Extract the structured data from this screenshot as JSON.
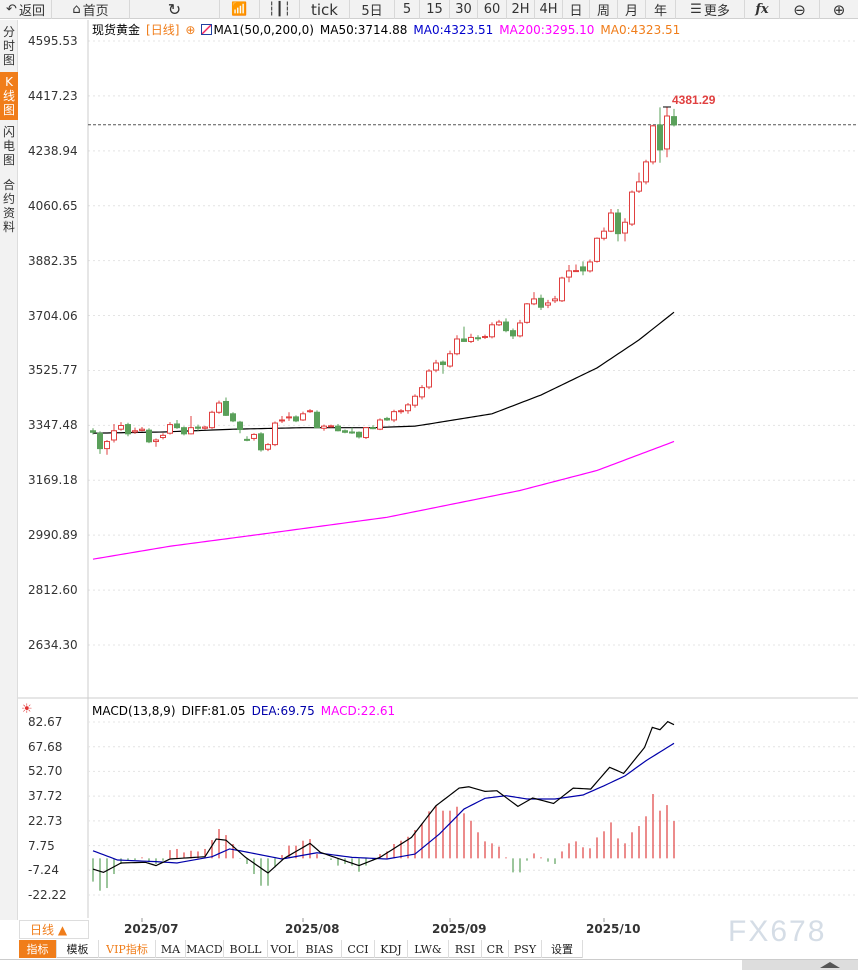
{
  "toolbar": {
    "back": "返回",
    "home": "首页",
    "tick": "tick",
    "five_day": "5日",
    "periods": [
      "5",
      "15",
      "30",
      "60",
      "2H",
      "4H",
      "日",
      "周",
      "月",
      "年"
    ],
    "more": "更多",
    "fx": "fx",
    "icons": [
      "back-arrow-icon",
      "home-icon",
      "refresh-icon",
      "bar-chart-icon",
      "candlestick-icon",
      "menu-icon",
      "function-icon",
      "zoom-out-icon",
      "zoom-in-icon"
    ]
  },
  "sidebar": {
    "items": [
      {
        "label": "分时图",
        "active": false
      },
      {
        "label": "K线图",
        "active": true
      },
      {
        "label": "闪电图",
        "active": false
      },
      {
        "label": "合约资料",
        "active": false
      }
    ]
  },
  "legend": {
    "instrument": "现货黄金",
    "period": "[日线]",
    "indicator": "MA1(50,0,200,0)",
    "ma50": "MA50:3714.88",
    "ma0_blue": "MA0:4323.51",
    "ma200": "MA200:3295.10",
    "ma0_orange": "MA0:4323.51"
  },
  "macd_legend": {
    "name": "MACD(13,8,9)",
    "diff": "DIFF:81.05",
    "dea": "DEA:69.75",
    "macd": "MACD:22.61"
  },
  "colors": {
    "up": "#e04040",
    "down": "#5aa05a",
    "ma50": "#000000",
    "ma200": "#ff00ff",
    "dea": "#0000aa",
    "accent": "#f07d1a",
    "last_price_line": "#3a7bd5"
  },
  "chart_data": [
    {
      "type": "candlestick",
      "ylim": [
        2634.3,
        4595.53
      ],
      "yticks": [
        "4595.53",
        "4417.23",
        "4238.94",
        "4060.65",
        "3882.35",
        "3704.06",
        "3525.77",
        "3347.48",
        "3169.18",
        "2990.89",
        "2812.60",
        "2634.30"
      ],
      "xticks": [
        {
          "index": 7,
          "label": "2025/07"
        },
        {
          "index": 30,
          "label": "2025/08"
        },
        {
          "index": 51,
          "label": "2025/09"
        },
        {
          "index": 73,
          "label": "2025/10"
        }
      ],
      "last_price": 4323.51,
      "high_label": "4381.29",
      "ohlc": [
        [
          3330,
          3338,
          3318,
          3325
        ],
        [
          3322,
          3328,
          3255,
          3272
        ],
        [
          3272,
          3300,
          3252,
          3295
        ],
        [
          3300,
          3352,
          3292,
          3330
        ],
        [
          3335,
          3358,
          3330,
          3347
        ],
        [
          3350,
          3356,
          3312,
          3320
        ],
        [
          3326,
          3340,
          3320,
          3330
        ],
        [
          3331,
          3342,
          3328,
          3335
        ],
        [
          3332,
          3338,
          3290,
          3294
        ],
        [
          3295,
          3305,
          3278,
          3300
        ],
        [
          3308,
          3322,
          3302,
          3315
        ],
        [
          3322,
          3358,
          3318,
          3350
        ],
        [
          3352,
          3365,
          3336,
          3340
        ],
        [
          3340,
          3344,
          3315,
          3320
        ],
        [
          3320,
          3378,
          3318,
          3340
        ],
        [
          3342,
          3350,
          3330,
          3338
        ],
        [
          3338,
          3346,
          3334,
          3342
        ],
        [
          3340,
          3395,
          3336,
          3390
        ],
        [
          3390,
          3428,
          3385,
          3420
        ],
        [
          3425,
          3438,
          3378,
          3380
        ],
        [
          3385,
          3390,
          3358,
          3362
        ],
        [
          3358,
          3362,
          3322,
          3334
        ],
        [
          3302,
          3312,
          3296,
          3300
        ],
        [
          3305,
          3322,
          3298,
          3318
        ],
        [
          3320,
          3325,
          3262,
          3268
        ],
        [
          3270,
          3290,
          3264,
          3285
        ],
        [
          3285,
          3360,
          3280,
          3355
        ],
        [
          3362,
          3378,
          3355,
          3365
        ],
        [
          3373,
          3390,
          3362,
          3375
        ],
        [
          3375,
          3380,
          3358,
          3362
        ],
        [
          3365,
          3392,
          3362,
          3385
        ],
        [
          3393,
          3400,
          3388,
          3395
        ],
        [
          3390,
          3396,
          3338,
          3340
        ],
        [
          3338,
          3350,
          3330,
          3345
        ],
        [
          3343,
          3350,
          3340,
          3346
        ],
        [
          3345,
          3352,
          3328,
          3330
        ],
        [
          3330,
          3334,
          3322,
          3325
        ],
        [
          3326,
          3340,
          3320,
          3324
        ],
        [
          3325,
          3328,
          3305,
          3310
        ],
        [
          3308,
          3342,
          3303,
          3340
        ],
        [
          3340,
          3348,
          3335,
          3338
        ],
        [
          3335,
          3370,
          3332,
          3365
        ],
        [
          3370,
          3375,
          3362,
          3365
        ],
        [
          3365,
          3398,
          3358,
          3392
        ],
        [
          3392,
          3400,
          3385,
          3395
        ],
        [
          3395,
          3420,
          3385,
          3414
        ],
        [
          3413,
          3448,
          3405,
          3442
        ],
        [
          3440,
          3478,
          3432,
          3470
        ],
        [
          3472,
          3530,
          3465,
          3524
        ],
        [
          3527,
          3560,
          3520,
          3550
        ],
        [
          3553,
          3558,
          3515,
          3545
        ],
        [
          3540,
          3590,
          3535,
          3580
        ],
        [
          3580,
          3640,
          3575,
          3628
        ],
        [
          3628,
          3668,
          3618,
          3620
        ],
        [
          3620,
          3645,
          3615,
          3633
        ],
        [
          3632,
          3640,
          3622,
          3630
        ],
        [
          3633,
          3642,
          3628,
          3636
        ],
        [
          3635,
          3682,
          3630,
          3674
        ],
        [
          3674,
          3690,
          3670,
          3683
        ],
        [
          3683,
          3695,
          3650,
          3655
        ],
        [
          3655,
          3662,
          3628,
          3638
        ],
        [
          3638,
          3690,
          3633,
          3680
        ],
        [
          3682,
          3745,
          3678,
          3742
        ],
        [
          3742,
          3780,
          3738,
          3758
        ],
        [
          3760,
          3772,
          3722,
          3731
        ],
        [
          3738,
          3755,
          3728,
          3745
        ],
        [
          3752,
          3768,
          3745,
          3758
        ],
        [
          3752,
          3830,
          3748,
          3826
        ],
        [
          3829,
          3868,
          3812,
          3849
        ],
        [
          3848,
          3870,
          3846,
          3850
        ],
        [
          3862,
          3880,
          3835,
          3849
        ],
        [
          3849,
          3886,
          3844,
          3878
        ],
        [
          3880,
          3958,
          3876,
          3955
        ],
        [
          3955,
          3990,
          3948,
          3978
        ],
        [
          3978,
          4050,
          3975,
          4037
        ],
        [
          4037,
          4050,
          3945,
          3970
        ],
        [
          3972,
          4020,
          3945,
          4007
        ],
        [
          4001,
          4110,
          3995,
          4105
        ],
        [
          4108,
          4168,
          4102,
          4138
        ],
        [
          4138,
          4210,
          4130,
          4203
        ],
        [
          4203,
          4323,
          4195,
          4320
        ],
        [
          4323,
          4380,
          4200,
          4242
        ],
        [
          4245,
          4381.29,
          4218,
          4352
        ],
        [
          4350,
          4375,
          4318,
          4323
        ]
      ],
      "ma50": [
        [
          0,
          3322
        ],
        [
          10,
          3326
        ],
        [
          20,
          3335
        ],
        [
          30,
          3340
        ],
        [
          40,
          3340
        ],
        [
          46,
          3345
        ],
        [
          48,
          3352
        ],
        [
          57,
          3385
        ],
        [
          64,
          3446
        ],
        [
          72,
          3534
        ],
        [
          78,
          3625
        ],
        [
          83,
          3714.88
        ]
      ],
      "ma200": [
        [
          0,
          2913
        ],
        [
          11,
          2955
        ],
        [
          25,
          2997
        ],
        [
          42,
          3049
        ],
        [
          61,
          3136
        ],
        [
          72,
          3201
        ],
        [
          83,
          3295.1
        ]
      ]
    },
    {
      "type": "macd",
      "ylim": [
        -22.22,
        82.67
      ],
      "yticks": [
        "82.67",
        "67.68",
        "52.70",
        "37.72",
        "22.73",
        "7.75",
        "-7.24",
        "-22.22"
      ],
      "diff": [
        [
          0,
          -6.5
        ],
        [
          1.5,
          -8.5
        ],
        [
          4,
          -2.8
        ],
        [
          7.5,
          -2.4
        ],
        [
          9,
          -4.4
        ],
        [
          11,
          -0.4
        ],
        [
          16,
          1
        ],
        [
          17.6,
          11.7
        ],
        [
          19,
          11
        ],
        [
          21.8,
          0.6
        ],
        [
          25,
          -8.9
        ],
        [
          27.3,
          0
        ],
        [
          31,
          9.1
        ],
        [
          32.5,
          3.6
        ],
        [
          38,
          -4.4
        ],
        [
          41,
          0.6
        ],
        [
          45.5,
          12.7
        ],
        [
          49,
          31.9
        ],
        [
          52.3,
          42.6
        ],
        [
          53.7,
          43.4
        ],
        [
          56,
          40.6
        ],
        [
          57.7,
          41
        ],
        [
          60.7,
          31.5
        ],
        [
          62.8,
          36.6
        ],
        [
          65.8,
          33.3
        ],
        [
          68.6,
          42.6
        ],
        [
          71.1,
          42
        ],
        [
          73.8,
          55.2
        ],
        [
          75.8,
          51.5
        ],
        [
          78.8,
          67.3
        ],
        [
          79.9,
          79.4
        ],
        [
          81,
          78
        ],
        [
          82.1,
          82.9
        ],
        [
          83,
          81.05
        ]
      ],
      "dea": [
        [
          0,
          4.6
        ],
        [
          3.5,
          -1
        ],
        [
          9,
          -2
        ],
        [
          12,
          -2.8
        ],
        [
          17,
          1
        ],
        [
          19.5,
          5.7
        ],
        [
          21,
          4.6
        ],
        [
          27,
          -0.4
        ],
        [
          32,
          3.4
        ],
        [
          37,
          0.6
        ],
        [
          42,
          -0.4
        ],
        [
          46,
          2.6
        ],
        [
          49.5,
          14.8
        ],
        [
          53,
          29.9
        ],
        [
          56,
          36.4
        ],
        [
          59,
          38
        ],
        [
          62,
          36
        ],
        [
          66,
          36
        ],
        [
          70,
          38.4
        ],
        [
          73,
          44
        ],
        [
          76,
          50
        ],
        [
          79,
          59.2
        ],
        [
          83,
          69.75
        ]
      ],
      "histogram": [
        -14.1,
        -19.6,
        -18,
        -9.5,
        -3.4,
        -1.4,
        -1,
        0.6,
        -2.4,
        -3.4,
        -1.4,
        5,
        5.7,
        3.6,
        4.6,
        4.2,
        5.7,
        11.1,
        17.8,
        14.1,
        8.7,
        -0.2,
        -3.4,
        -9.5,
        -16.6,
        -16.6,
        -5.5,
        2,
        7.7,
        7.7,
        10.7,
        11.7,
        2.6,
        -0.4,
        -1,
        -4.4,
        -3.4,
        -4.4,
        -8.1,
        -4.4,
        -1.4,
        2.6,
        4.2,
        8.7,
        10.7,
        13.1,
        17.2,
        21.2,
        28.5,
        31.9,
        28.9,
        28.9,
        31.3,
        27.3,
        22.8,
        15.8,
        10.3,
        9.1,
        7.1,
        0.6,
        -8.5,
        -8.5,
        -1.4,
        3,
        0.6,
        -2,
        -3.4,
        4.2,
        9.1,
        10.3,
        6.7,
        6.1,
        12.7,
        16.4,
        21.8,
        12.1,
        9.1,
        15.8,
        19.6,
        25.5,
        39,
        28.9,
        32.3,
        22.61
      ]
    }
  ],
  "footer": {
    "period_button": "日线 ▲",
    "tabs": [
      "指标",
      "模板",
      "VIP指标",
      "MA",
      "MACD",
      "BOLL",
      "VOL",
      "BIAS",
      "CCI",
      "KDJ",
      "LW&",
      "RSI",
      "CR",
      "PSY",
      "设置"
    ],
    "watermark": "FX678"
  }
}
